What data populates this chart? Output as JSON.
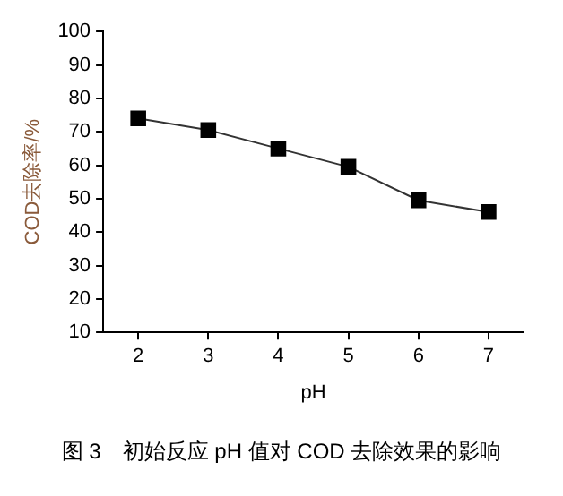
{
  "chart_data": {
    "type": "line",
    "xlabel": "pH",
    "ylabel": "COD去除率/%",
    "annotations": [
      "图 3　初始反应 pH 值对 COD 去除效果的影响"
    ],
    "x": [
      2,
      3,
      4,
      5,
      6,
      7
    ],
    "series": [
      {
        "color": "#000000",
        "values": [
          74,
          70.5,
          65,
          59.5,
          49.5,
          46
        ]
      }
    ],
    "xlim": [
      1.5,
      7.5
    ],
    "xticks": [
      2,
      3,
      4,
      5,
      6,
      7
    ],
    "ylim": [
      10,
      100
    ],
    "yticks": [
      10,
      20,
      30,
      40,
      50,
      60,
      70,
      80,
      90,
      100
    ],
    "grid": false,
    "legend": false,
    "marker": "square",
    "line_style": "solid"
  }
}
